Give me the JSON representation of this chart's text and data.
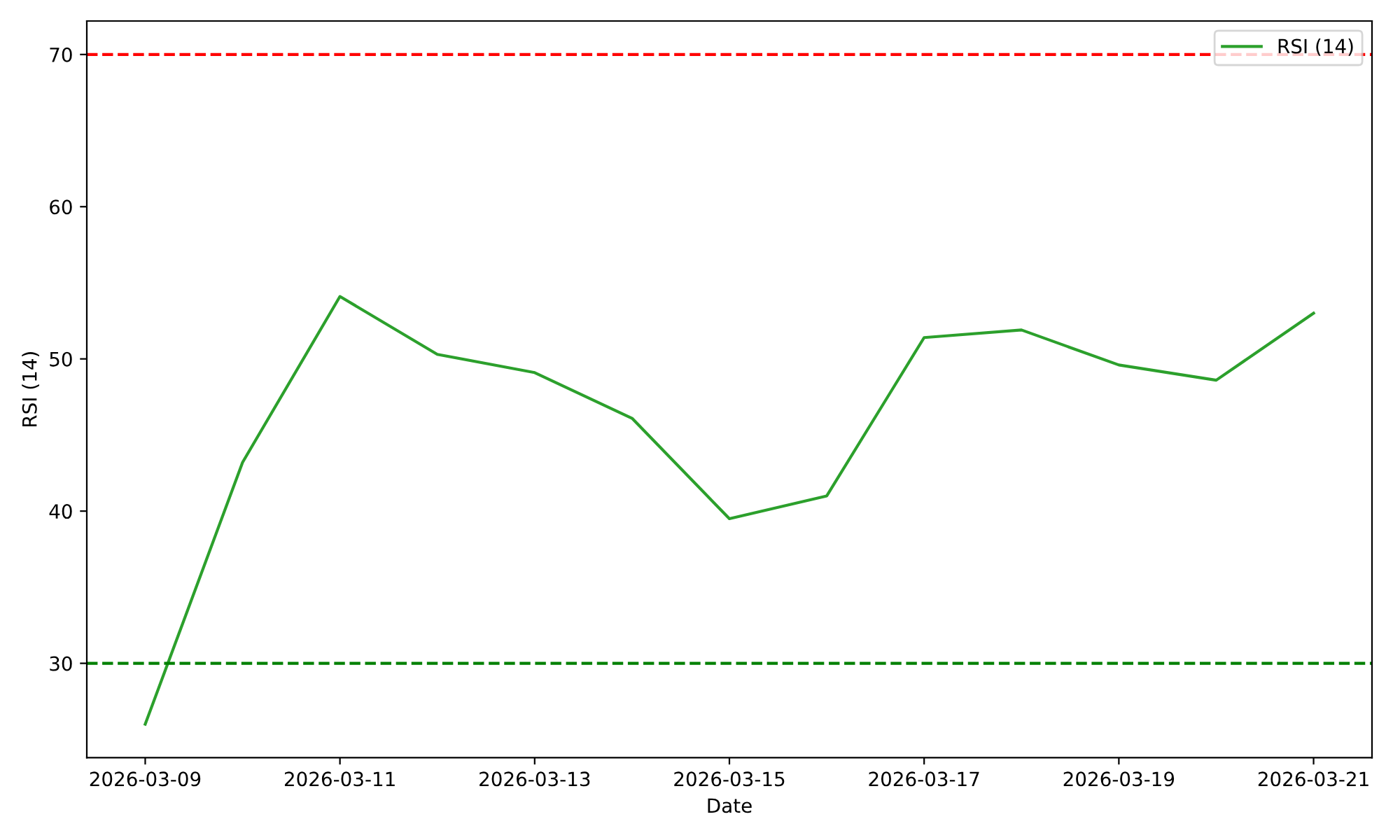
{
  "chart_data": {
    "type": "line",
    "xlabel": "Date",
    "ylabel": "RSI (14)",
    "x": [
      "2026-03-09",
      "2026-03-10",
      "2026-03-11",
      "2026-03-12",
      "2026-03-13",
      "2026-03-14",
      "2026-03-15",
      "2026-03-16",
      "2026-03-17",
      "2026-03-18",
      "2026-03-19",
      "2026-03-20",
      "2026-03-21"
    ],
    "series": [
      {
        "name": "RSI (14)",
        "color": "#2ca02c",
        "values": [
          26.0,
          43.2,
          54.1,
          50.3,
          49.1,
          46.1,
          39.5,
          41.0,
          51.4,
          51.9,
          49.6,
          48.6,
          53.0
        ]
      }
    ],
    "xlim": [
      "2026-03-08T09:36",
      "2026-03-21T14:24"
    ],
    "xticks": [
      "2026-03-09",
      "2026-03-11",
      "2026-03-13",
      "2026-03-15",
      "2026-03-17",
      "2026-03-19",
      "2026-03-21"
    ],
    "ylim": [
      23.8,
      72.2
    ],
    "yticks": [
      30,
      40,
      50,
      60,
      70
    ],
    "ref_lines": [
      {
        "axis": "y",
        "value": 70,
        "color": "#ff0000",
        "line_style": "dashed"
      },
      {
        "axis": "y",
        "value": 30,
        "color": "#008000",
        "line_style": "dashed"
      }
    ],
    "legend": "top right",
    "grid": false,
    "line_style": "solid"
  }
}
